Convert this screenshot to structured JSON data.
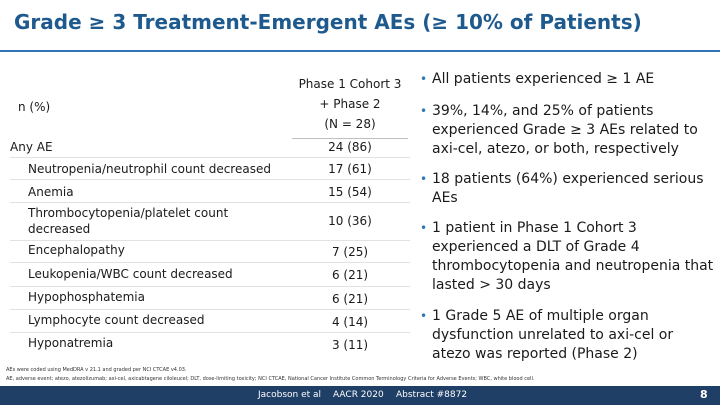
{
  "title": "Grade ≥ 3 Treatment-Emergent AEs (≥ 10% of Patients)",
  "table": {
    "row_header": "n (%)",
    "column_header": [
      "Phase 1 Cohort 3",
      "+ Phase 2",
      "(N = 28)"
    ],
    "rows": [
      {
        "label": "Any AE",
        "value": "24 (86)"
      },
      {
        "label": "Neutropenia/neutrophil count decreased",
        "value": "17 (61)"
      },
      {
        "label": "Anemia",
        "value": "15 (54)"
      },
      {
        "label": "Thrombocytopenia/platelet count",
        "label2": "decreased",
        "value": "10 (36)"
      },
      {
        "label": "Encephalopathy",
        "value": "7 (25)"
      },
      {
        "label": "Leukopenia/WBC count decreased",
        "value": "6 (21)"
      },
      {
        "label": "Hypophosphatemia",
        "value": "6 (21)"
      },
      {
        "label": "Lymphocyte count decreased",
        "value": "4 (14)"
      },
      {
        "label": "Hyponatremia",
        "value": "3 (11)"
      }
    ]
  },
  "bullets": [
    "All patients experienced ≥ 1 AE",
    "39%, 14%, and 25% of patients experienced Grade ≥ 3 AEs related to axi-cel, atezo, or both, respectively",
    "18 patients (64%) experienced serious AEs",
    "1 patient in Phase 1 Cohort 3 experienced a DLT of Grade 4 thrombocytopenia and neutropenia that lasted > 30 days",
    "1 Grade 5 AE of multiple organ dysfunction unrelated to axi-cel or atezo was reported (Phase 2)"
  ],
  "footnotes": [
    "AEs were coded using MedDRA v 21.1 and graded per NCI CTCAE v4.03.",
    "AE, adverse event; atezo, atezolizumab; axi-cel, axicabtagene ciloleucel; DLT, dose-limiting toxicity; NCI CTCAE, National Cancer Institute Common Terminology Criteria for Adverse Events; WBC, white blood cell."
  ],
  "footer": {
    "author": "Jacobson et al",
    "meeting": "AACR 2020",
    "abstract": "Abstract #8872",
    "page": "8"
  },
  "colors": {
    "title": "#1f5a8e",
    "accent": "#2f75b5",
    "footer_bar": "#1f3f66"
  }
}
